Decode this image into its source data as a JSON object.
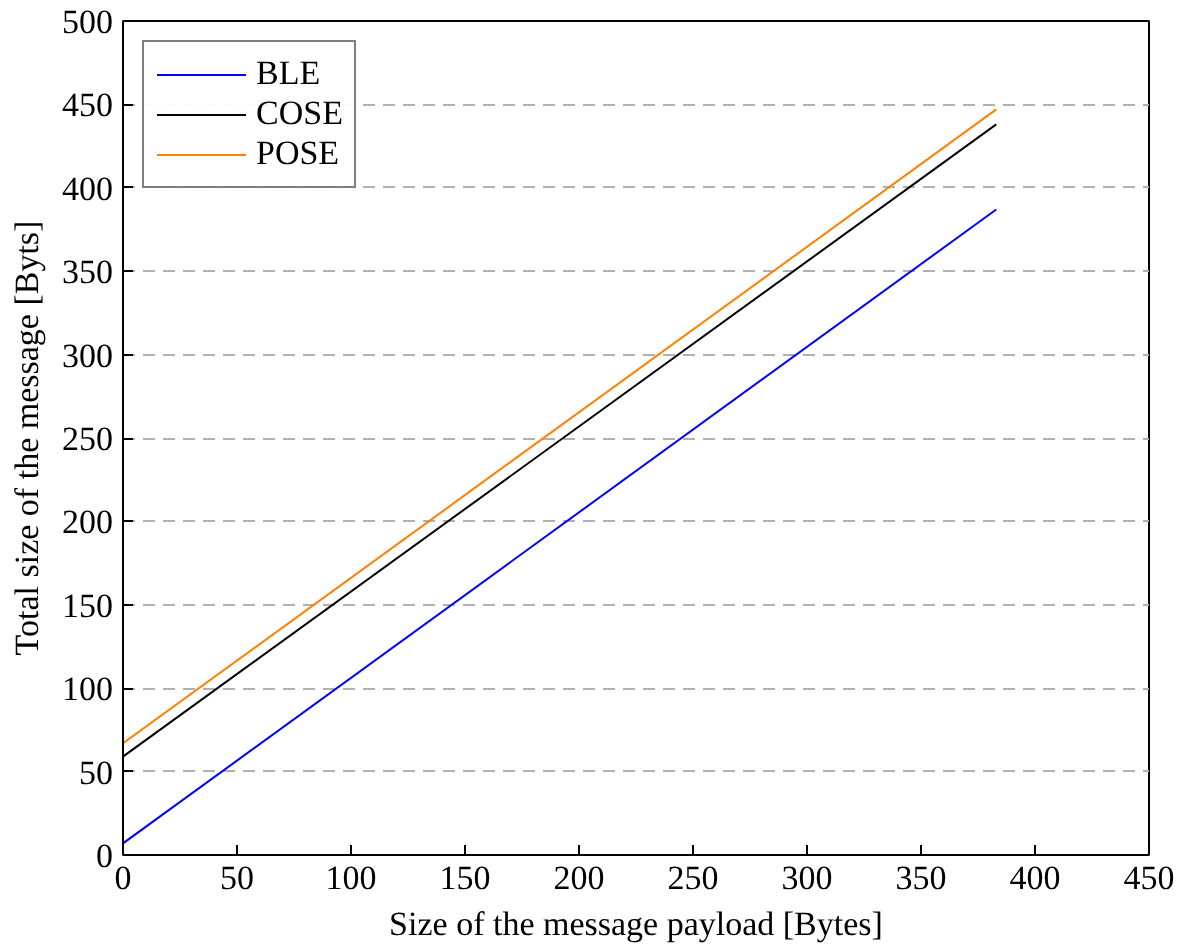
{
  "chart_data": {
    "type": "line",
    "xlabel": "Size of the message payload [Bytes]",
    "ylabel": "Total size of the message [Byts]",
    "xlim": [
      0,
      450
    ],
    "ylim": [
      0,
      500
    ],
    "xticks": [
      0,
      50,
      100,
      150,
      200,
      250,
      300,
      350,
      400,
      450
    ],
    "yticks": [
      0,
      50,
      100,
      150,
      200,
      250,
      300,
      350,
      400,
      450,
      500
    ],
    "x": [
      0,
      383
    ],
    "grid": "y",
    "legend": "top left",
    "line_style": "solid",
    "marker": "none",
    "series": [
      {
        "name": "BLE",
        "color": "#0000ff",
        "values": [
          7,
          387
        ]
      },
      {
        "name": "COSE",
        "color": "#000000",
        "values": [
          59,
          438
        ]
      },
      {
        "name": "POSE",
        "color": "#ff8000",
        "values": [
          67,
          447
        ]
      }
    ]
  }
}
